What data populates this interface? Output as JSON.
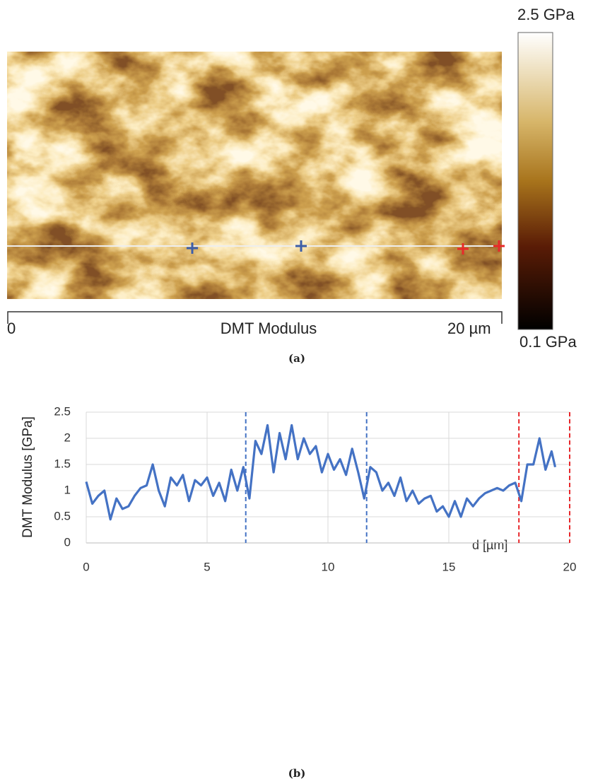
{
  "panel_a": {
    "scale_start": "0",
    "title": "DMT Modulus",
    "scale_end": "20 µm",
    "colorbar_max": "2.5 GPa",
    "colorbar_min": "0.1 GPa",
    "caption": "(a)"
  },
  "chart_data": {
    "type": "line",
    "y_label": "DMT Modulus [GPa]",
    "x_label": "d [µm]",
    "caption": "(b)",
    "x": [
      0,
      0.25,
      0.5,
      0.75,
      1,
      1.25,
      1.5,
      1.75,
      2,
      2.25,
      2.5,
      2.75,
      3,
      3.25,
      3.5,
      3.75,
      4,
      4.25,
      4.5,
      4.75,
      5,
      5.25,
      5.5,
      5.75,
      6,
      6.25,
      6.5,
      6.75,
      7,
      7.25,
      7.5,
      7.75,
      8,
      8.25,
      8.5,
      8.75,
      9,
      9.25,
      9.5,
      9.75,
      10,
      10.25,
      10.5,
      10.75,
      11,
      11.25,
      11.5,
      11.75,
      12,
      12.25,
      12.5,
      12.75,
      13,
      13.25,
      13.5,
      13.75,
      14,
      14.25,
      14.5,
      14.75,
      15,
      15.25,
      15.5,
      15.75,
      16,
      16.25,
      16.5,
      16.75,
      17,
      17.25,
      17.5,
      17.75,
      18,
      18.25,
      18.5,
      18.75,
      19,
      19.25,
      19.4
    ],
    "series": [
      {
        "color": "#4472c4",
        "values": [
          1.17,
          0.75,
          0.9,
          1.0,
          0.45,
          0.85,
          0.65,
          0.7,
          0.9,
          1.05,
          1.1,
          1.5,
          1.0,
          0.7,
          1.25,
          1.1,
          1.3,
          0.8,
          1.2,
          1.1,
          1.25,
          0.9,
          1.15,
          0.8,
          1.4,
          1.0,
          1.45,
          0.85,
          1.95,
          1.7,
          2.25,
          1.35,
          2.1,
          1.6,
          2.25,
          1.6,
          2.0,
          1.7,
          1.85,
          1.35,
          1.7,
          1.4,
          1.6,
          1.3,
          1.8,
          1.35,
          0.85,
          1.45,
          1.35,
          1.0,
          1.15,
          0.9,
          1.25,
          0.8,
          1.0,
          0.75,
          0.85,
          0.9,
          0.6,
          0.7,
          0.5,
          0.8,
          0.5,
          0.85,
          0.7,
          0.85,
          0.95,
          1.0,
          1.05,
          1.0,
          1.1,
          1.15,
          0.8,
          1.5,
          1.5,
          2.0,
          1.4,
          1.75,
          1.45
        ]
      }
    ],
    "reference_lines": [
      {
        "x": 6.6,
        "color": "#4472c4"
      },
      {
        "x": 11.6,
        "color": "#4472c4"
      },
      {
        "x": 17.9,
        "color": "#e8262a"
      },
      {
        "x": 20,
        "color": "#e8262a"
      }
    ],
    "xlim": [
      0,
      20
    ],
    "xticks": [
      0,
      5,
      10,
      15,
      20
    ],
    "ylim": [
      0,
      2.5
    ],
    "yticks": [
      0,
      0.5,
      1,
      1.5,
      2,
      2.5
    ],
    "grid": true
  }
}
